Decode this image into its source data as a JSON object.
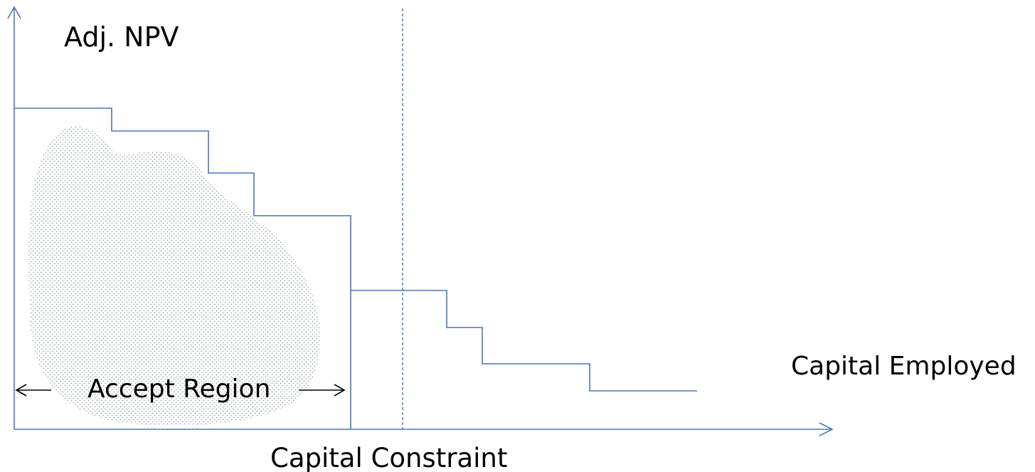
{
  "labels": {
    "y_axis": "Adj. NPV",
    "x_axis": "Capital Employed",
    "accept_region": "Accept Region",
    "capital_constraint": "Capital Constraint"
  },
  "colors": {
    "line": "#4a76b8",
    "stipple": "#9aa6b4",
    "text": "#000000"
  }
}
